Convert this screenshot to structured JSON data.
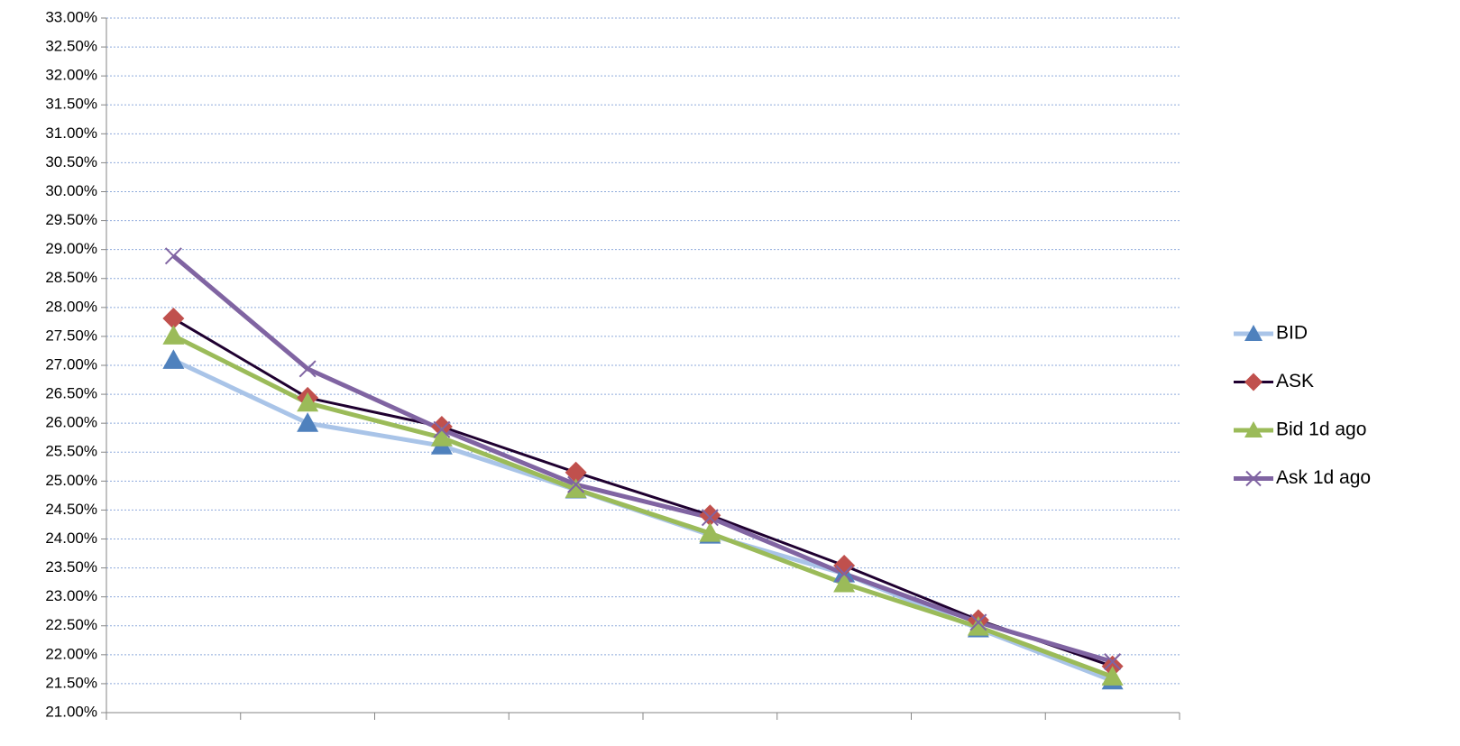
{
  "chart_data": {
    "type": "line",
    "categories": [
      null,
      null,
      null,
      null,
      null,
      null,
      null,
      null
    ],
    "series": [
      {
        "name": "BID",
        "color": "#a9c4e8",
        "marker_color": "#4f81bd",
        "marker": "triangle",
        "values": [
          27.09,
          26.0,
          25.61,
          24.85,
          24.07,
          23.4,
          22.45,
          21.55
        ]
      },
      {
        "name": "ASK",
        "color": "#1f0030",
        "marker_color": "#c0504d",
        "marker": "diamond",
        "values": [
          27.81,
          26.44,
          25.94,
          25.15,
          24.41,
          23.54,
          22.6,
          21.8
        ]
      },
      {
        "name": "Bid 1d ago",
        "color": "#9bbb59",
        "marker_color": "#9bbb59",
        "marker": "triangle",
        "values": [
          27.51,
          26.35,
          25.75,
          24.86,
          24.1,
          23.23,
          22.48,
          21.62
        ]
      },
      {
        "name": "Ask 1d ago",
        "color": "#8064a2",
        "marker_color": "#8064a2",
        "marker": "x",
        "values": [
          28.89,
          26.94,
          25.89,
          24.94,
          24.37,
          23.4,
          22.56,
          21.88
        ]
      }
    ],
    "ylim": [
      21,
      33
    ],
    "yticks": [
      {
        "value": 21,
        "label": "21.00%"
      },
      {
        "value": 21.5,
        "label": "21.50%"
      },
      {
        "value": 22,
        "label": "22.00%"
      },
      {
        "value": 22.5,
        "label": "22.50%"
      },
      {
        "value": 23,
        "label": "23.00%"
      },
      {
        "value": 23.5,
        "label": "23.50%"
      },
      {
        "value": 24,
        "label": "24.00%"
      },
      {
        "value": 24.5,
        "label": "24.50%"
      },
      {
        "value": 25,
        "label": "25.00%"
      },
      {
        "value": 25.5,
        "label": "25.50%"
      },
      {
        "value": 26,
        "label": "26.00%"
      },
      {
        "value": 26.5,
        "label": "26.50%"
      },
      {
        "value": 27,
        "label": "27.00%"
      },
      {
        "value": 27.5,
        "label": "27.50%"
      },
      {
        "value": 28,
        "label": "28.00%"
      },
      {
        "value": 28.5,
        "label": "28.50%"
      },
      {
        "value": 29,
        "label": "29.00%"
      },
      {
        "value": 29.5,
        "label": "29.50%"
      },
      {
        "value": 30,
        "label": "30.00%"
      },
      {
        "value": 30.5,
        "label": "30.50%"
      },
      {
        "value": 31,
        "label": "31.00%"
      },
      {
        "value": 31.5,
        "label": "31.50%"
      },
      {
        "value": 32,
        "label": "32.00%"
      },
      {
        "value": 32.5,
        "label": "32.50%"
      },
      {
        "value": 33,
        "label": "33.00%"
      }
    ],
    "grid": true,
    "legend": "right"
  }
}
